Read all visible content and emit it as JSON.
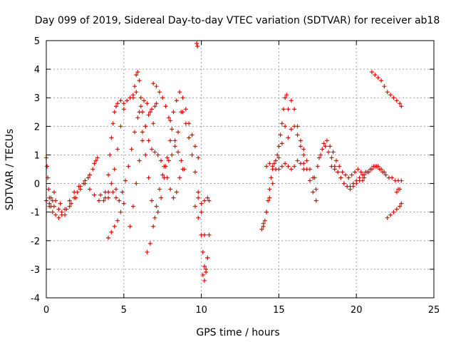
{
  "chart_data": {
    "type": "scatter",
    "title": "Day 099 of 2019, Sidereal Day-to-day VTEC variation (SDTVAR) for receiver ab18",
    "xlabel": "GPS time / hours",
    "ylabel": "SDTVAR / TECUs",
    "xlim": [
      0,
      25
    ],
    "ylim": [
      -4,
      5
    ],
    "xticks": [
      0,
      5,
      10,
      15,
      20,
      25
    ],
    "yticks": [
      -4,
      -3,
      -2,
      -1,
      0,
      1,
      2,
      3,
      4,
      5
    ],
    "xtick_labels": [
      "0",
      "5",
      "10",
      "15",
      "20",
      "25"
    ],
    "ytick_labels": [
      "-4",
      "-3",
      "-2",
      "-1",
      "0",
      "1",
      "2",
      "3",
      "4",
      "5"
    ],
    "grid": true,
    "marker": "+",
    "color": "#ff0000",
    "tracks": [
      {
        "x": [
          0.0,
          0.05,
          0.1,
          0.15,
          0.2,
          0.3,
          0.4,
          0.5
        ],
        "y": [
          0.9,
          0.6,
          0.2,
          -0.2,
          -0.5,
          -0.8,
          -0.6,
          -0.3
        ]
      },
      {
        "x": [
          0.0,
          0.2,
          0.5,
          0.8,
          1.0,
          1.2,
          1.5,
          1.8,
          2.0,
          2.2,
          2.5,
          2.8
        ],
        "y": [
          -0.6,
          -0.7,
          -0.8,
          -0.9,
          -1.0,
          -1.1,
          -0.8,
          -0.5,
          -0.3,
          -0.1,
          0.1,
          0.3
        ]
      },
      {
        "x": [
          0.3,
          0.6,
          0.9,
          1.2,
          1.5,
          1.8,
          2.1,
          2.4,
          2.7,
          3.0,
          3.2
        ],
        "y": [
          -0.5,
          -0.6,
          -0.7,
          -0.9,
          -0.6,
          -0.3,
          -0.1,
          0.0,
          0.2,
          0.5,
          0.8
        ]
      },
      {
        "x": [
          0.2,
          0.4,
          0.6,
          0.8,
          1.0,
          1.3,
          1.6,
          1.9,
          2.2,
          2.5,
          2.8,
          3.1,
          3.3
        ],
        "y": [
          -0.8,
          -1.0,
          -1.1,
          -1.2,
          -1.1,
          -0.9,
          -0.7,
          -0.5,
          -0.2,
          0.0,
          0.3,
          0.7,
          0.9
        ]
      },
      {
        "x": [
          2.8,
          3.1,
          3.4,
          3.7,
          4.0,
          4.3,
          4.5
        ],
        "y": [
          -0.2,
          -0.4,
          -0.6,
          -0.6,
          -0.5,
          -0.3,
          -0.2
        ]
      },
      {
        "x": [
          4.0,
          4.2,
          4.4,
          4.6,
          4.8,
          5.0
        ],
        "y": [
          -1.9,
          -1.7,
          -1.5,
          -1.3,
          -1.0,
          -0.7
        ]
      },
      {
        "x": [
          3.5,
          3.8,
          4.0,
          4.2,
          4.4,
          4.6,
          4.8,
          5.0,
          5.2,
          5.4,
          5.6,
          5.8
        ],
        "y": [
          -0.4,
          -0.5,
          -0.3,
          0.0,
          0.5,
          1.2,
          2.0,
          2.6,
          2.9,
          3.0,
          3.1,
          3.2
        ]
      },
      {
        "x": [
          3.8,
          4.0,
          4.1,
          4.2,
          4.3,
          4.4,
          4.5,
          4.6,
          4.8,
          5.0
        ],
        "y": [
          -0.3,
          0.3,
          1.0,
          1.6,
          2.1,
          2.5,
          2.7,
          2.8,
          2.9,
          2.8
        ]
      },
      {
        "x": [
          4.5,
          4.7,
          4.9,
          5.1,
          5.3,
          5.5,
          5.7,
          5.9,
          6.1,
          6.3,
          6.5,
          6.7,
          6.9
        ],
        "y": [
          -0.5,
          -0.6,
          -0.3,
          0.1,
          0.6,
          1.2,
          1.8,
          2.3,
          2.7,
          2.9,
          2.8,
          2.5,
          2.1
        ]
      },
      {
        "x": [
          5.6,
          5.7,
          5.8,
          5.9,
          6.0,
          6.1,
          6.2,
          6.4,
          6.6,
          6.8,
          7.0,
          7.2
        ],
        "y": [
          3.0,
          3.4,
          3.8,
          3.9,
          3.6,
          3.0,
          2.5,
          2.0,
          1.5,
          1.2,
          1.1,
          1.0
        ]
      },
      {
        "x": [
          5.4,
          5.6,
          5.8,
          6.0,
          6.2,
          6.4,
          6.6,
          6.8,
          7.0,
          7.1
        ],
        "y": [
          -1.5,
          -0.8,
          0.0,
          0.8,
          1.5,
          2.0,
          2.4,
          2.6,
          2.7,
          2.8
        ]
      },
      {
        "x": [
          6.0,
          6.2,
          6.4,
          6.6,
          6.8,
          7.0,
          7.2,
          7.4,
          7.6,
          7.8,
          8.0
        ],
        "y": [
          2.5,
          1.8,
          1.0,
          0.2,
          -0.6,
          -1.2,
          -1.0,
          -0.5,
          0.2,
          0.9,
          1.5
        ]
      },
      {
        "x": [
          6.5,
          6.7,
          6.9,
          7.1,
          7.3,
          7.5,
          7.7,
          7.9,
          8.1,
          8.3,
          8.5,
          8.7
        ],
        "y": [
          -2.4,
          -2.1,
          -1.5,
          -0.8,
          -0.2,
          0.3,
          0.6,
          0.8,
          1.0,
          1.3,
          1.8,
          2.5
        ]
      },
      {
        "x": [
          6.9,
          7.1,
          7.3,
          7.5,
          7.7,
          7.9,
          8.1,
          8.3,
          8.5,
          8.7,
          8.9
        ],
        "y": [
          3.5,
          3.4,
          3.2,
          3.0,
          2.7,
          2.3,
          1.9,
          1.5,
          1.1,
          0.8,
          0.5
        ]
      },
      {
        "x": [
          7.4,
          7.6,
          7.8,
          8.0,
          8.2,
          8.4,
          8.6,
          8.8
        ],
        "y": [
          0.8,
          0.6,
          0.2,
          -0.2,
          -0.5,
          -0.3,
          0.2,
          0.5
        ]
      },
      {
        "x": [
          8.0,
          8.2,
          8.4,
          8.6,
          8.8,
          9.0,
          9.2,
          9.4,
          9.6,
          9.8
        ],
        "y": [
          2.2,
          2.5,
          2.9,
          3.2,
          3.0,
          2.6,
          2.1,
          1.7,
          1.3,
          0.9
        ]
      },
      {
        "x": [
          8.8,
          9.0,
          9.2,
          9.4,
          9.6,
          9.8,
          10.0,
          10.2,
          10.4
        ],
        "y": [
          2.5,
          2.1,
          1.6,
          1.0,
          0.4,
          -0.3,
          -1.0,
          -1.8,
          -2.6
        ]
      },
      {
        "x": [
          9.6,
          9.8,
          10.0,
          10.1,
          10.2,
          10.3,
          10.4,
          10.5
        ],
        "y": [
          -0.8,
          -1.2,
          -1.8,
          -2.4,
          -2.9,
          -3.1,
          -2.6,
          -1.8
        ]
      },
      {
        "x": [
          9.8,
          10.0,
          10.2,
          10.4,
          10.5
        ],
        "y": [
          -0.5,
          -0.7,
          -0.6,
          -0.5,
          -0.6
        ]
      },
      {
        "x": [
          10.1,
          10.2,
          10.3
        ],
        "y": [
          -3.2,
          -3.4,
          -3.0
        ]
      },
      {
        "x": [
          9.7,
          9.75
        ],
        "y": [
          4.9,
          4.8
        ]
      },
      {
        "x": [
          13.9,
          14.0,
          14.1,
          14.2,
          14.3,
          14.4,
          14.5,
          14.6,
          14.7,
          14.8,
          14.9,
          15.0,
          15.1,
          15.2,
          15.3,
          15.4,
          15.5
        ],
        "y": [
          -1.6,
          -1.5,
          -1.3,
          -1.0,
          -0.6,
          -0.2,
          0.2,
          0.5,
          0.7,
          0.8,
          1.0,
          1.3,
          1.7,
          2.1,
          2.6,
          3.0,
          3.1
        ]
      },
      {
        "x": [
          14.0,
          14.2,
          14.4,
          14.6,
          14.8,
          15.0,
          15.2,
          15.4,
          15.6,
          15.8,
          16.0,
          16.2,
          16.4,
          16.6
        ],
        "y": [
          -1.4,
          -1.0,
          -0.5,
          0.0,
          0.5,
          0.9,
          1.4,
          2.0,
          2.6,
          2.9,
          2.6,
          2.0,
          1.5,
          1.2
        ]
      },
      {
        "x": [
          14.2,
          14.4,
          14.6,
          14.8,
          15.0,
          15.2,
          15.4,
          15.6,
          15.8,
          16.0,
          16.2,
          16.4,
          16.6
        ],
        "y": [
          0.6,
          0.7,
          0.6,
          0.5,
          0.5,
          0.6,
          0.7,
          0.6,
          0.5,
          0.6,
          0.8,
          0.7,
          0.5
        ]
      },
      {
        "x": [
          15.6,
          15.8,
          16.0,
          16.2,
          16.4,
          16.6,
          16.8,
          17.0,
          17.2,
          17.4
        ],
        "y": [
          1.6,
          1.9,
          2.0,
          1.7,
          1.3,
          1.0,
          0.8,
          0.5,
          0.2,
          -0.2
        ]
      },
      {
        "x": [
          16.6,
          16.8,
          17.0,
          17.2,
          17.4
        ],
        "y": [
          0.7,
          0.5,
          0.1,
          -0.3,
          -0.6
        ]
      },
      {
        "x": [
          17.3,
          17.5,
          17.7,
          17.9,
          18.1,
          18.3,
          18.5,
          18.7,
          18.9,
          19.1,
          19.3,
          19.5,
          19.7,
          19.9,
          20.1,
          20.3,
          20.5
        ],
        "y": [
          0.2,
          0.6,
          1.0,
          1.4,
          1.5,
          1.3,
          1.1,
          0.8,
          0.6,
          0.4,
          0.3,
          0.2,
          0.3,
          0.4,
          0.5,
          0.4,
          0.3
        ]
      },
      {
        "x": [
          17.6,
          17.8,
          18.0,
          18.2,
          18.4,
          18.6,
          18.8,
          19.0,
          19.2,
          19.4,
          19.6,
          19.8,
          20.0,
          20.2,
          20.4
        ],
        "y": [
          0.9,
          1.2,
          1.3,
          1.1,
          0.9,
          0.6,
          0.4,
          0.2,
          0.0,
          -0.1,
          -0.2,
          -0.1,
          0.0,
          0.1,
          0.1
        ]
      },
      {
        "x": [
          18.4,
          18.6,
          18.8,
          19.0,
          19.2,
          19.4,
          19.6,
          19.8,
          20.0,
          20.2,
          20.4,
          20.6,
          20.8,
          21.0,
          21.2,
          21.4,
          21.6,
          21.8
        ],
        "y": [
          0.6,
          0.5,
          0.4,
          0.2,
          0.0,
          -0.1,
          -0.1,
          0.0,
          0.1,
          0.2,
          0.3,
          0.4,
          0.4,
          0.5,
          0.6,
          0.6,
          0.5,
          0.4
        ]
      },
      {
        "x": [
          20.5,
          20.7,
          20.9,
          21.1,
          21.3,
          21.5,
          21.7,
          21.9,
          22.1,
          22.3,
          22.5,
          22.7,
          22.9
        ],
        "y": [
          0.2,
          0.4,
          0.5,
          0.6,
          0.6,
          0.5,
          0.4,
          0.3,
          0.2,
          0.2,
          0.1,
          0.1,
          0.1
        ]
      },
      {
        "x": [
          21.0,
          21.2,
          21.4,
          21.6,
          21.8,
          22.0,
          22.2,
          22.4,
          22.6,
          22.8,
          22.9
        ],
        "y": [
          3.9,
          3.8,
          3.7,
          3.6,
          3.4,
          3.2,
          3.1,
          3.0,
          2.9,
          2.8,
          2.7
        ]
      },
      {
        "x": [
          22.0,
          22.2,
          22.4,
          22.6,
          22.8,
          22.9
        ],
        "y": [
          -1.2,
          -1.1,
          -1.0,
          -0.9,
          -0.8,
          -0.7
        ]
      },
      {
        "x": [
          22.6,
          22.7,
          22.8
        ],
        "y": [
          -0.3,
          -0.2,
          -0.2
        ]
      }
    ]
  }
}
